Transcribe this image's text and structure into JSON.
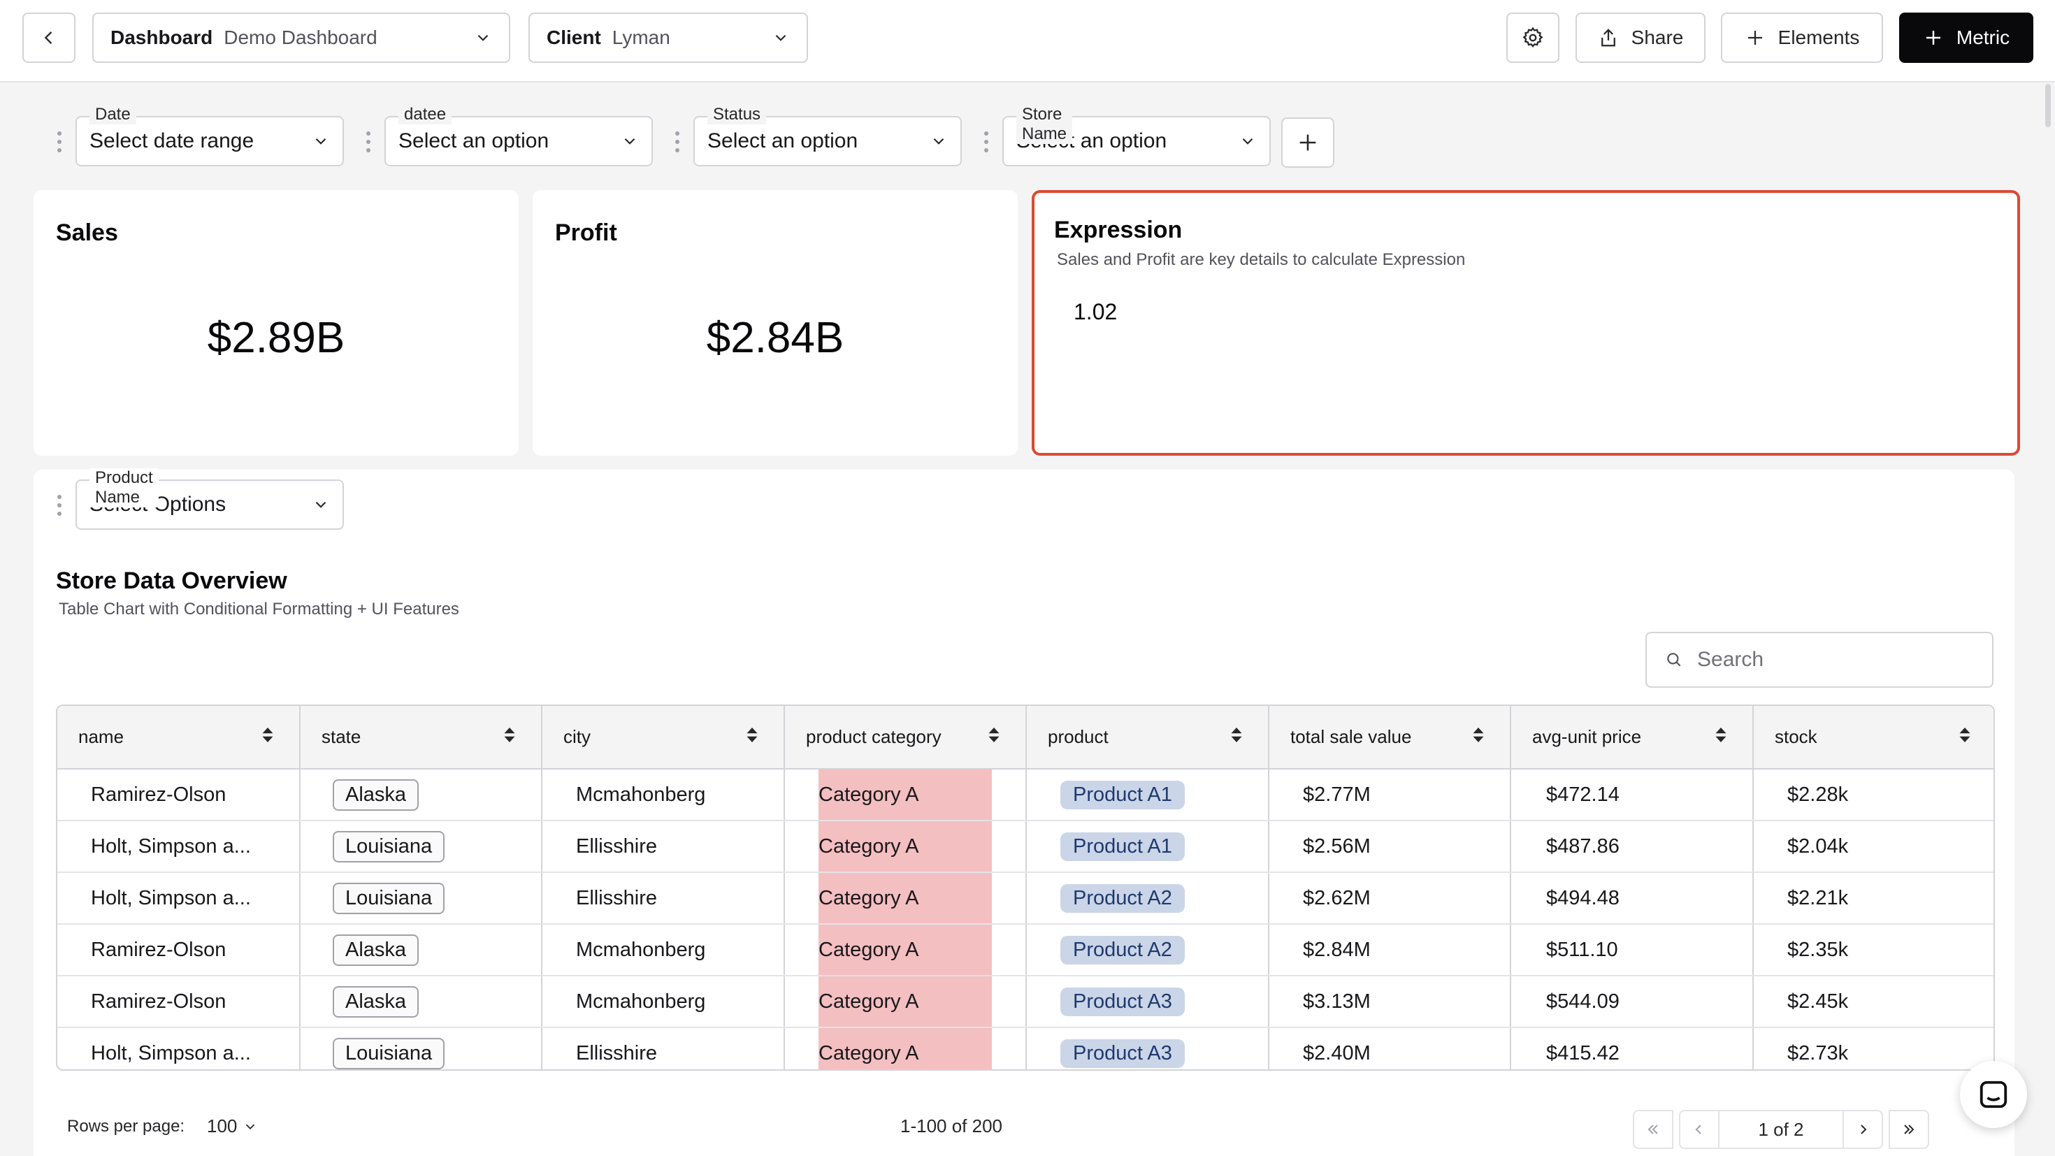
{
  "topbar": {
    "dashboard_label": "Dashboard",
    "dashboard_value": "Demo Dashboard",
    "client_label": "Client",
    "client_value": "Lyman",
    "share_label": "Share",
    "elements_label": "Elements",
    "metric_label": "Metric"
  },
  "filters": [
    {
      "label": "Date",
      "value": "Select date range"
    },
    {
      "label": "datee",
      "value": "Select an option"
    },
    {
      "label": "Status",
      "value": "Select an option"
    },
    {
      "label": "Store Name",
      "value": "Select an option"
    }
  ],
  "cards": {
    "sales": {
      "title": "Sales",
      "value": "$2.89B"
    },
    "profit": {
      "title": "Profit",
      "value": "$2.84B"
    },
    "expression": {
      "title": "Expression",
      "subtitle": "Sales and Profit are key details to calculate Expression",
      "value": "1.02"
    }
  },
  "product_filter": {
    "label": "Product Name",
    "value": "Select Options"
  },
  "table_panel": {
    "title": "Store Data Overview",
    "subtitle": "Table Chart with Conditional Formatting + UI Features",
    "search_placeholder": "Search"
  },
  "table": {
    "columns": [
      "name",
      "state",
      "city",
      "product category",
      "product",
      "total sale value",
      "avg-unit price",
      "stock"
    ],
    "rows": [
      [
        "Ramirez-Olson",
        "Alaska",
        "Mcmahonberg",
        "Category A",
        "Product A1",
        "$2.77M",
        "$472.14",
        "$2.28k"
      ],
      [
        "Holt, Simpson a...",
        "Louisiana",
        "Ellisshire",
        "Category A",
        "Product A1",
        "$2.56M",
        "$487.86",
        "$2.04k"
      ],
      [
        "Holt, Simpson a...",
        "Louisiana",
        "Ellisshire",
        "Category A",
        "Product A2",
        "$2.62M",
        "$494.48",
        "$2.21k"
      ],
      [
        "Ramirez-Olson",
        "Alaska",
        "Mcmahonberg",
        "Category A",
        "Product A2",
        "$2.84M",
        "$511.10",
        "$2.35k"
      ],
      [
        "Ramirez-Olson",
        "Alaska",
        "Mcmahonberg",
        "Category A",
        "Product A3",
        "$3.13M",
        "$544.09",
        "$2.45k"
      ],
      [
        "Holt, Simpson a...",
        "Louisiana",
        "Ellisshire",
        "Category A",
        "Product A3",
        "$2.40M",
        "$415.42",
        "$2.73k"
      ]
    ]
  },
  "footer": {
    "rows_per_page_label": "Rows per page:",
    "rows_per_page_value": "100",
    "range_text": "1-100 of 200",
    "page_text": "1 of 2"
  },
  "colors": {
    "expression_border": "#dc4a34",
    "category_highlight": "#f4bfc1",
    "product_tag": "#cbd5e8",
    "metric_button": "#09090b"
  },
  "icons": [
    "chevron-left-icon",
    "chevron-down-icon",
    "gear-icon",
    "share-icon",
    "plus-icon",
    "search-icon",
    "sort-icon",
    "first-page-icon",
    "prev-page-icon",
    "next-page-icon",
    "last-page-icon",
    "chat-icon",
    "drag-handle-icon"
  ]
}
